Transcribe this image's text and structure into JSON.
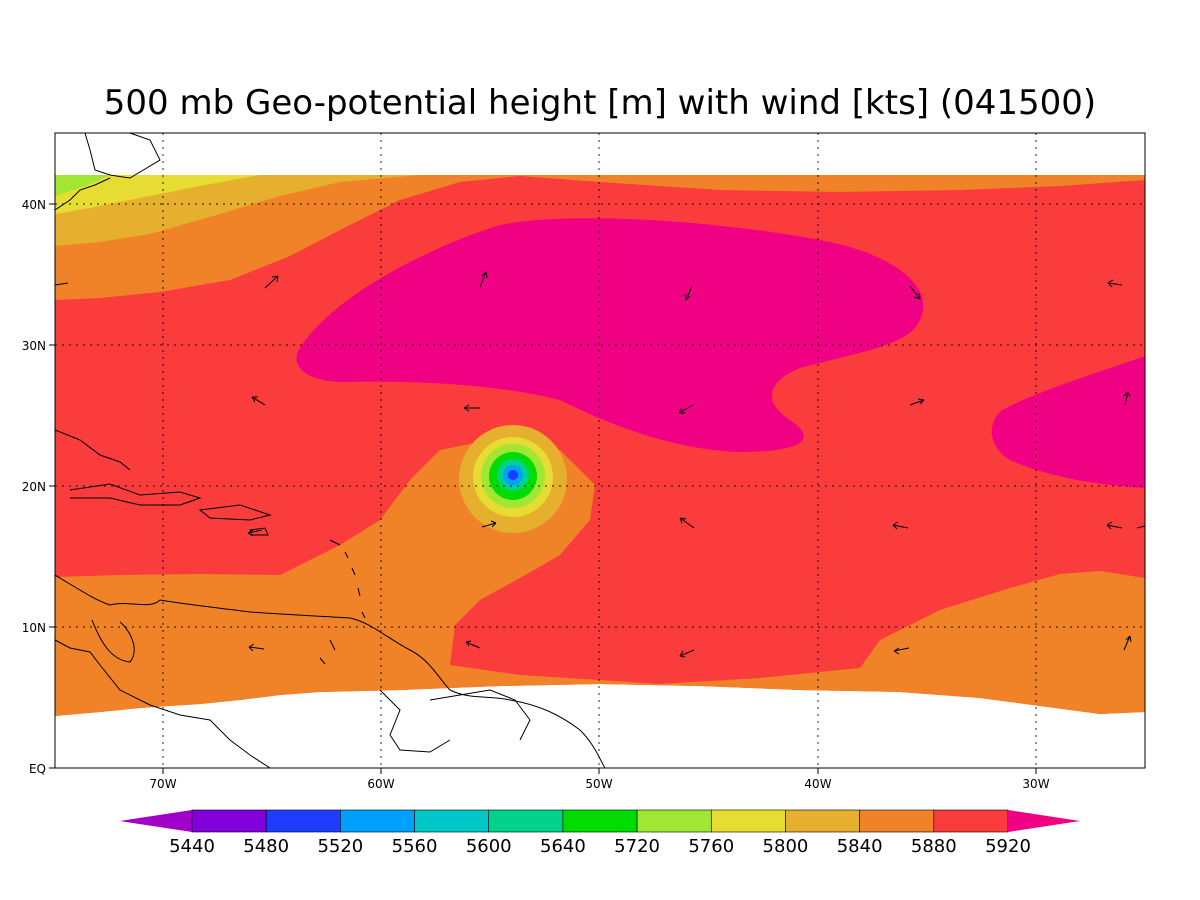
{
  "title": "500 mb Geo-potential height [m] with wind [kts] (041500)",
  "chart_data": {
    "type": "heatmap",
    "title": "500 mb Geo-potential height [m] with wind [kts] (041500)",
    "x_axis": {
      "unit": "longitude",
      "range": [
        -75,
        -25
      ],
      "ticks": [
        {
          "value": -70,
          "label": "70W"
        },
        {
          "value": -60,
          "label": "60W"
        },
        {
          "value": -50,
          "label": "50W"
        },
        {
          "value": -40,
          "label": "40W"
        },
        {
          "value": -30,
          "label": "30W"
        }
      ]
    },
    "y_axis": {
      "unit": "latitude",
      "range": [
        0,
        45
      ],
      "ticks": [
        {
          "value": 0,
          "label": "EQ"
        },
        {
          "value": 10,
          "label": "10N"
        },
        {
          "value": 20,
          "label": "20N"
        },
        {
          "value": 30,
          "label": "30N"
        },
        {
          "value": 40,
          "label": "40N"
        }
      ]
    },
    "grid": "dotted",
    "colorbar": {
      "levels": [
        "5440",
        "5480",
        "5520",
        "5560",
        "5600",
        "5640",
        "5720",
        "5760",
        "5800",
        "5840",
        "5880",
        "5920"
      ],
      "colors": [
        "#a000c8",
        "#8200dc",
        "#1e3cff",
        "#00a0ff",
        "#00c8c8",
        "#00d28c",
        "#00dc00",
        "#a0e632",
        "#e6dc32",
        "#e6af2d",
        "#f08228",
        "#fa3c3c",
        "#f00082"
      ]
    },
    "low_center": {
      "lon": -54,
      "lat": 21
    }
  },
  "colors": {
    "c5840": "#e6af2d",
    "c5880": "#f08228",
    "c5920": "#fa3c3c",
    "cMax": "#f00082",
    "c5800": "#e6dc32",
    "c5760": "#a0e632"
  }
}
